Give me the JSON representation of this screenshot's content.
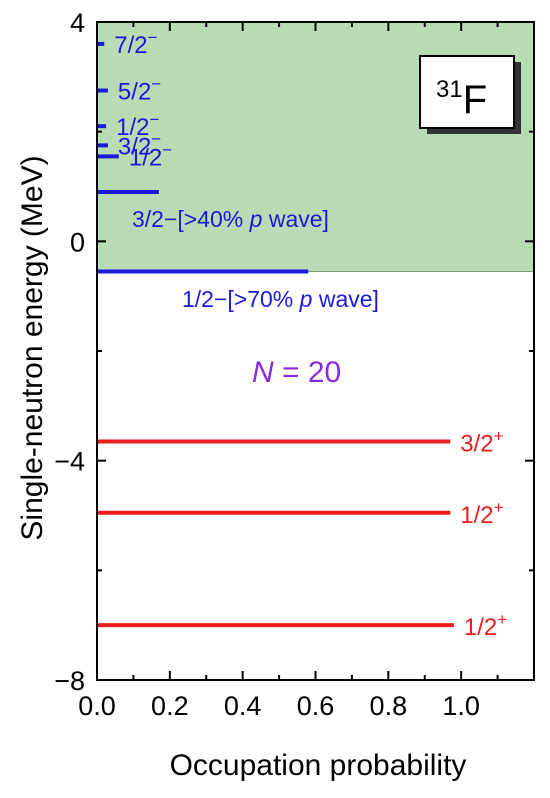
{
  "chart_data": {
    "type": "scatter",
    "xlabel": "Occupation probability",
    "ylabel": "Single-neutron energy (MeV)",
    "xlim": [
      0.0,
      1.2
    ],
    "ylim": [
      -8,
      4
    ],
    "x_ticks": [
      "0.0",
      "0.2",
      "0.4",
      "0.6",
      "0.8",
      "1.0"
    ],
    "y_ticks": [
      "4",
      "0",
      "−4",
      "−8"
    ],
    "y_tick_values": [
      4,
      0,
      -4,
      -8
    ],
    "x_tick_values": [
      0.0,
      0.2,
      0.4,
      0.6,
      0.8,
      1.0
    ],
    "continuum_region": {
      "ymin": -0.55,
      "ymax": 4,
      "color": "#b7dbb2"
    },
    "nucleus": {
      "mass": "31",
      "symbol": "F"
    },
    "shell_gap_label": {
      "italic": "N",
      "text": " = 20"
    },
    "levels": [
      {
        "label": "7/2−",
        "energy": 3.6,
        "occupation": 0.02,
        "color": "#1a1adc"
      },
      {
        "label": "5/2−",
        "energy": 2.75,
        "occupation": 0.03,
        "color": "#1a1adc"
      },
      {
        "label": "1/2−",
        "energy": 2.1,
        "occupation": 0.025,
        "color": "#1a1adc"
      },
      {
        "label": "3/2−",
        "energy": 1.75,
        "occupation": 0.03,
        "color": "#1a1adc"
      },
      {
        "label": "1/2−",
        "energy": 1.55,
        "occupation": 0.06,
        "color": "#1a1adc"
      },
      {
        "label": "",
        "energy": 0.9,
        "occupation": 0.17,
        "color": "#1a1adc"
      },
      {
        "label": "",
        "energy": -0.55,
        "occupation": 0.58,
        "color": "#1a1adc"
      },
      {
        "label": "3/2+",
        "energy": -3.65,
        "occupation": 0.97,
        "color": "#ee1c1c"
      },
      {
        "label": "1/2+",
        "energy": -4.95,
        "occupation": 0.97,
        "color": "#ee1c1c"
      },
      {
        "label": "1/2+",
        "energy": -7.0,
        "occupation": 0.98,
        "color": "#ee1c1c"
      }
    ],
    "annotations": [
      {
        "pre": "3/2−[>40% ",
        "italic": "p",
        "post": " wave]"
      },
      {
        "pre": "1/2−[>70% ",
        "italic": "p",
        "post": " wave]"
      }
    ]
  }
}
